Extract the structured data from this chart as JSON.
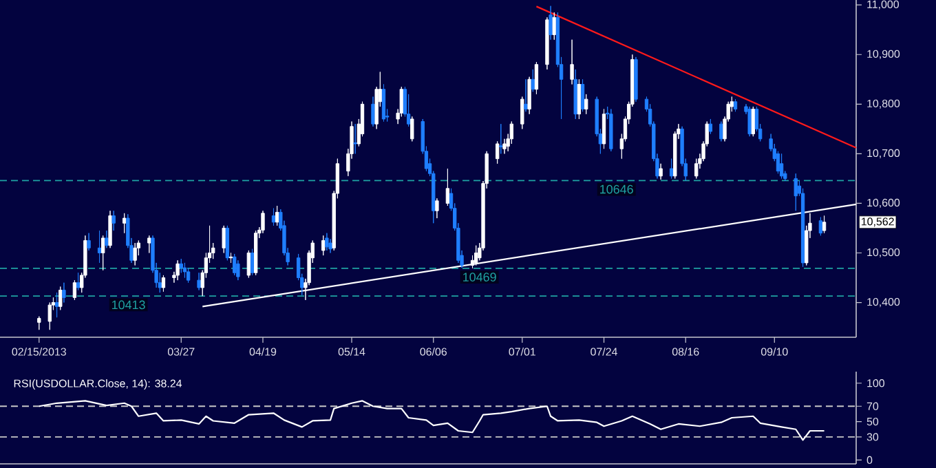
{
  "chart_data": [
    {
      "type": "candlestick",
      "x": [
        "2013-02-15",
        "2013-02-18",
        "2013-02-19",
        "2013-02-20",
        "2013-02-21",
        "2013-02-22",
        "2013-02-25",
        "2013-02-26",
        "2013-02-27",
        "2013-02-28",
        "2013-03-01",
        "2013-03-04",
        "2013-03-05",
        "2013-03-06",
        "2013-03-07",
        "2013-03-08",
        "2013-03-11",
        "2013-03-12",
        "2013-03-13",
        "2013-03-14",
        "2013-03-15",
        "2013-03-18",
        "2013-03-19",
        "2013-03-20",
        "2013-03-21",
        "2013-03-22",
        "2013-03-25",
        "2013-03-26",
        "2013-03-27",
        "2013-03-28",
        "2013-03-29",
        "2013-04-01",
        "2013-04-02",
        "2013-04-03",
        "2013-04-04",
        "2013-04-05",
        "2013-04-08",
        "2013-04-09",
        "2013-04-10",
        "2013-04-11",
        "2013-04-12",
        "2013-04-15",
        "2013-04-16",
        "2013-04-17",
        "2013-04-18",
        "2013-04-19",
        "2013-04-22",
        "2013-04-23",
        "2013-04-24",
        "2013-04-25",
        "2013-04-26",
        "2013-04-29",
        "2013-04-30",
        "2013-05-01",
        "2013-05-02",
        "2013-05-03",
        "2013-05-06",
        "2013-05-07",
        "2013-05-08",
        "2013-05-09",
        "2013-05-10",
        "2013-05-13",
        "2013-05-14",
        "2013-05-15",
        "2013-05-16",
        "2013-05-17",
        "2013-05-20",
        "2013-05-21",
        "2013-05-22",
        "2013-05-23",
        "2013-05-24",
        "2013-05-27",
        "2013-05-28",
        "2013-05-29",
        "2013-05-30",
        "2013-05-31",
        "2013-06-03",
        "2013-06-04",
        "2013-06-05",
        "2013-06-06",
        "2013-06-07",
        "2013-06-10",
        "2013-06-11",
        "2013-06-12",
        "2013-06-13",
        "2013-06-14",
        "2013-06-17",
        "2013-06-18",
        "2013-06-19",
        "2013-06-20",
        "2013-06-21",
        "2013-06-24",
        "2013-06-25",
        "2013-06-26",
        "2013-06-27",
        "2013-06-28",
        "2013-07-01",
        "2013-07-02",
        "2013-07-03",
        "2013-07-04",
        "2013-07-05",
        "2013-07-08",
        "2013-07-09",
        "2013-07-10",
        "2013-07-11",
        "2013-07-12",
        "2013-07-15",
        "2013-07-16",
        "2013-07-17",
        "2013-07-18",
        "2013-07-19",
        "2013-07-22",
        "2013-07-23",
        "2013-07-24",
        "2013-07-25",
        "2013-07-26",
        "2013-07-29",
        "2013-07-30",
        "2013-07-31",
        "2013-08-01",
        "2013-08-02",
        "2013-08-05",
        "2013-08-06",
        "2013-08-07",
        "2013-08-08",
        "2013-08-09",
        "2013-08-12",
        "2013-08-13",
        "2013-08-14",
        "2013-08-15",
        "2013-08-16",
        "2013-08-19",
        "2013-08-20",
        "2013-08-21",
        "2013-08-22",
        "2013-08-23",
        "2013-08-26",
        "2013-08-27",
        "2013-08-28",
        "2013-08-29",
        "2013-08-30",
        "2013-09-02",
        "2013-09-03",
        "2013-09-04",
        "2013-09-05",
        "2013-09-06",
        "2013-09-09",
        "2013-09-10",
        "2013-09-11",
        "2013-09-12",
        "2013-09-13",
        "2013-09-16",
        "2013-09-17",
        "2013-09-18",
        "2013-09-19",
        "2013-09-20",
        "2013-09-23",
        "2013-09-24"
      ],
      "ohlc": [
        [
          10360,
          10372,
          10345,
          10368
        ],
        [
          10362,
          10400,
          10345,
          10395
        ],
        [
          10395,
          10410,
          10385,
          10400
        ],
        [
          10400,
          10420,
          10370,
          10392
        ],
        [
          10392,
          10432,
          10385,
          10425
        ],
        [
          10425,
          10440,
          10400,
          10410
        ],
        [
          10410,
          10445,
          10405,
          10440
        ],
        [
          10440,
          10460,
          10425,
          10430
        ],
        [
          10430,
          10460,
          10420,
          10455
        ],
        [
          10455,
          10535,
          10450,
          10525
        ],
        [
          10525,
          10540,
          10505,
          10510
        ],
        [
          10510,
          10545,
          10480,
          10500
        ],
        [
          10500,
          10535,
          10465,
          10530
        ],
        [
          10530,
          10545,
          10510,
          10515
        ],
        [
          10515,
          10585,
          10510,
          10575
        ],
        [
          10575,
          10585,
          10545,
          10560
        ],
        [
          10560,
          10580,
          10540,
          10570
        ],
        [
          10570,
          10578,
          10510,
          10515
        ],
        [
          10515,
          10530,
          10480,
          10485
        ],
        [
          10485,
          10520,
          10475,
          10510
        ],
        [
          10510,
          10525,
          10495,
          10520
        ],
        [
          10520,
          10535,
          10500,
          10530
        ],
        [
          10530,
          10535,
          10460,
          10465
        ],
        [
          10465,
          10480,
          10430,
          10440
        ],
        [
          10440,
          10460,
          10420,
          10430
        ],
        [
          10430,
          10455,
          10422,
          10450
        ],
        [
          10450,
          10462,
          10440,
          10455
        ],
        [
          10455,
          10485,
          10445,
          10478
        ],
        [
          10478,
          10488,
          10460,
          10470
        ],
        [
          10470,
          10480,
          10450,
          10462
        ],
        [
          10462,
          10470,
          10440,
          10445
        ],
        [
          10445,
          10460,
          10425,
          10430
        ],
        [
          10430,
          10465,
          10413,
          10460
        ],
        [
          10460,
          10500,
          10450,
          10490
        ],
        [
          10490,
          10555,
          10480,
          10500
        ],
        [
          10500,
          10520,
          10488,
          10510
        ],
        [
          10510,
          10555,
          10500,
          10550
        ],
        [
          10550,
          10555,
          10485,
          10490
        ],
        [
          10490,
          10500,
          10480,
          10492
        ],
        [
          10492,
          10498,
          10455,
          10460
        ],
        [
          10478,
          10485,
          10445,
          10452
        ],
        [
          10455,
          10505,
          10450,
          10500
        ],
        [
          10500,
          10508,
          10455,
          10460
        ],
        [
          10460,
          10545,
          10455,
          10540
        ],
        [
          10540,
          10552,
          10530,
          10546
        ],
        [
          10546,
          10585,
          10540,
          10580
        ],
        [
          10575,
          10590,
          10555,
          10562
        ],
        [
          10562,
          10595,
          10555,
          10582
        ],
        [
          10582,
          10588,
          10545,
          10550
        ],
        [
          10555,
          10565,
          10495,
          10500
        ],
        [
          10500,
          10510,
          10475,
          10482
        ],
        [
          10490,
          10498,
          10445,
          10450
        ],
        [
          10450,
          10458,
          10415,
          10430
        ],
        [
          10430,
          10448,
          10405,
          10440
        ],
        [
          10440,
          10505,
          10435,
          10500
        ],
        [
          10490,
          10525,
          10480,
          10520
        ],
        [
          10505,
          10535,
          10495,
          10525
        ],
        [
          10530,
          10540,
          10505,
          10512
        ],
        [
          10520,
          10528,
          10500,
          10508
        ],
        [
          10510,
          10625,
          10505,
          10620
        ],
        [
          10620,
          10690,
          10610,
          10680
        ],
        [
          10665,
          10710,
          10655,
          10700
        ],
        [
          10700,
          10765,
          10690,
          10755
        ],
        [
          10722,
          10760,
          10700,
          10720
        ],
        [
          10720,
          10770,
          10715,
          10760
        ],
        [
          10740,
          10805,
          10735,
          10800
        ],
        [
          10800,
          10815,
          10755,
          10760
        ],
        [
          10760,
          10835,
          10750,
          10830
        ],
        [
          10805,
          10865,
          10795,
          10830
        ],
        [
          10830,
          10840,
          10765,
          10770
        ],
        [
          10776,
          10790,
          10765,
          10774
        ],
        [
          10770,
          10790,
          10760,
          10782
        ],
        [
          10782,
          10835,
          10775,
          10830
        ],
        [
          10830,
          10835,
          10775,
          10780
        ],
        [
          10780,
          10820,
          10755,
          10760
        ],
        [
          10730,
          10775,
          10725,
          10770
        ],
        [
          10765,
          10770,
          10700,
          10705
        ],
        [
          10705,
          10715,
          10665,
          10670
        ],
        [
          10680,
          10690,
          10655,
          10660
        ],
        [
          10660,
          10665,
          10560,
          10585
        ],
        [
          10585,
          10610,
          10570,
          10605
        ],
        [
          10600,
          10670,
          10595,
          10630
        ],
        [
          10620,
          10630,
          10585,
          10590
        ],
        [
          10590,
          10600,
          10545,
          10550
        ],
        [
          10550,
          10560,
          10480,
          10485
        ],
        [
          10495,
          10505,
          10470,
          10475
        ],
        [
          10475,
          10495,
          10469,
          10485
        ],
        [
          10480,
          10515,
          10475,
          10500
        ],
        [
          10490,
          10520,
          10485,
          10510
        ],
        [
          10510,
          10645,
          10505,
          10640
        ],
        [
          10640,
          10705,
          10630,
          10700
        ],
        [
          10690,
          10725,
          10680,
          10720
        ],
        [
          10716,
          10760,
          10700,
          10714
        ],
        [
          10710,
          10730,
          10700,
          10720
        ],
        [
          10715,
          10740,
          10705,
          10730
        ],
        [
          10730,
          10765,
          10720,
          10760
        ],
        [
          10760,
          10815,
          10750,
          10810
        ],
        [
          10800,
          10850,
          10785,
          10790
        ],
        [
          10790,
          10855,
          10780,
          10850
        ],
        [
          10850,
          10870,
          10825,
          10830
        ],
        [
          10830,
          10885,
          10820,
          10880
        ],
        [
          10880,
          10975,
          10870,
          10970
        ],
        [
          10980,
          10998,
          10930,
          10940
        ],
        [
          10940,
          10985,
          10930,
          10975
        ],
        [
          10975,
          10985,
          10875,
          10880
        ],
        [
          10880,
          10895,
          10770,
          10850
        ],
        [
          10850,
          10930,
          10840,
          10880
        ],
        [
          10850,
          10870,
          10770,
          10780
        ],
        [
          10780,
          10850,
          10770,
          10840
        ],
        [
          10840,
          10850,
          10785,
          10790
        ],
        [
          10790,
          10820,
          10780,
          10810
        ],
        [
          10810,
          10815,
          10735,
          10740
        ],
        [
          10740,
          10750,
          10700,
          10720
        ],
        [
          10720,
          10790,
          10710,
          10780
        ],
        [
          10782,
          10795,
          10770,
          10780
        ],
        [
          10780,
          10790,
          10705,
          10710
        ],
        [
          10710,
          10740,
          10690,
          10730
        ],
        [
          10730,
          10775,
          10725,
          10770
        ],
        [
          10770,
          10805,
          10760,
          10800
        ],
        [
          10800,
          10900,
          10795,
          10890
        ],
        [
          10890,
          10895,
          10805,
          10810
        ],
        [
          10810,
          10815,
          10785,
          10790
        ],
        [
          10790,
          10800,
          10755,
          10760
        ],
        [
          10760,
          10765,
          10685,
          10690
        ],
        [
          10690,
          10700,
          10650,
          10655
        ],
        [
          10655,
          10680,
          10648,
          10670
        ],
        [
          10670,
          10690,
          10650,
          10655
        ],
        [
          10655,
          10745,
          10650,
          10740
        ],
        [
          10740,
          10760,
          10730,
          10750
        ],
        [
          10750,
          10755,
          10675,
          10680
        ],
        [
          10680,
          10690,
          10646,
          10655
        ],
        [
          10655,
          10690,
          10650,
          10680
        ],
        [
          10680,
          10700,
          10670,
          10690
        ],
        [
          10690,
          10725,
          10685,
          10720
        ],
        [
          10720,
          10765,
          10715,
          10760
        ],
        [
          10760,
          10770,
          10740,
          10745
        ],
        [
          10760,
          10765,
          10725,
          10730
        ],
        [
          10730,
          10775,
          10725,
          10770
        ],
        [
          10770,
          10805,
          10765,
          10800
        ],
        [
          10795,
          10815,
          10785,
          10805
        ],
        [
          10805,
          10810,
          10785,
          10790
        ],
        [
          10795,
          10800,
          10780,
          10785
        ],
        [
          10790,
          10795,
          10735,
          10740
        ],
        [
          10740,
          10795,
          10735,
          10790
        ],
        [
          10790,
          10795,
          10745,
          10750
        ],
        [
          10750,
          10760,
          10725,
          10730
        ],
        [
          10730,
          10740,
          10705,
          10710
        ],
        [
          10710,
          10720,
          10685,
          10690
        ],
        [
          10700,
          10705,
          10660,
          10665
        ],
        [
          10680,
          10700,
          10650,
          10655
        ],
        [
          10660,
          10665,
          10645,
          10650
        ],
        [
          10650,
          10660,
          10585,
          10615
        ],
        [
          10635,
          10645,
          10615,
          10620
        ],
        [
          10620,
          10630,
          10472,
          10480
        ],
        [
          10480,
          10555,
          10475,
          10545
        ],
        [
          10545,
          10580,
          10530,
          10560
        ],
        [
          10565,
          10572,
          10535,
          10540
        ],
        [
          10545,
          10575,
          10540,
          10562
        ]
      ],
      "colors": [
        "#ffffff",
        "#ffffff",
        "#ffffff",
        "#1f7fff",
        "#ffffff",
        "#1f7fff",
        "#ffffff",
        "#1f7fff",
        "#ffffff",
        "#ffffff",
        "#1f7fff",
        "#1f7fff",
        "#ffffff",
        "#1f7fff",
        "#ffffff",
        "#1f7fff",
        "#ffffff",
        "#1f7fff",
        "#1f7fff",
        "#ffffff",
        "#ffffff",
        "#ffffff",
        "#1f7fff",
        "#1f7fff",
        "#1f7fff",
        "#ffffff",
        "#ffffff",
        "#ffffff",
        "#1f7fff",
        "#1f7fff",
        "#1f7fff",
        "#1f7fff",
        "#ffffff",
        "#ffffff",
        "#ffffff",
        "#ffffff",
        "#ffffff",
        "#1f7fff",
        "#ffffff",
        "#1f7fff",
        "#1f7fff",
        "#ffffff",
        "#1f7fff",
        "#ffffff",
        "#ffffff",
        "#ffffff",
        "#1f7fff",
        "#ffffff",
        "#1f7fff",
        "#1f7fff",
        "#1f7fff",
        "#1f7fff",
        "#1f7fff",
        "#ffffff",
        "#ffffff",
        "#ffffff",
        "#ffffff",
        "#1f7fff",
        "#1f7fff",
        "#ffffff",
        "#ffffff",
        "#ffffff",
        "#ffffff",
        "#1f7fff",
        "#ffffff",
        "#ffffff",
        "#1f7fff",
        "#ffffff",
        "#ffffff",
        "#1f7fff",
        "#1f7fff",
        "#ffffff",
        "#ffffff",
        "#1f7fff",
        "#1f7fff",
        "#ffffff",
        "#1f7fff",
        "#1f7fff",
        "#1f7fff",
        "#1f7fff",
        "#ffffff",
        "#ffffff",
        "#1f7fff",
        "#1f7fff",
        "#1f7fff",
        "#1f7fff",
        "#ffffff",
        "#ffffff",
        "#ffffff",
        "#ffffff",
        "#ffffff",
        "#ffffff",
        "#1f7fff",
        "#ffffff",
        "#ffffff",
        "#ffffff",
        "#ffffff",
        "#1f7fff",
        "#ffffff",
        "#1f7fff",
        "#ffffff",
        "#ffffff",
        "#1f7fff",
        "#ffffff",
        "#1f7fff",
        "#1f7fff",
        "#ffffff",
        "#1f7fff",
        "#ffffff",
        "#1f7fff",
        "#ffffff",
        "#1f7fff",
        "#1f7fff",
        "#ffffff",
        "#1f7fff",
        "#1f7fff",
        "#ffffff",
        "#ffffff",
        "#ffffff",
        "#ffffff",
        "#1f7fff",
        "#1f7fff",
        "#1f7fff",
        "#1f7fff",
        "#1f7fff",
        "#ffffff",
        "#1f7fff",
        "#ffffff",
        "#ffffff",
        "#1f7fff",
        "#1f7fff",
        "#ffffff",
        "#ffffff",
        "#ffffff",
        "#ffffff",
        "#1f7fff",
        "#1f7fff",
        "#ffffff",
        "#ffffff",
        "#ffffff",
        "#1f7fff",
        "#1f7fff",
        "#1f7fff",
        "#ffffff",
        "#1f7fff",
        "#1f7fff",
        "#1f7fff",
        "#1f7fff",
        "#1f7fff",
        "#1f7fff",
        "#1f7fff",
        "#1f7fff",
        "#1f7fff",
        "#1f7fff",
        "#ffffff",
        "#ffffff",
        "#1f7fff",
        "#ffffff"
      ],
      "series": [
        {
          "type": "line",
          "x": [
            "2013-04-02",
            "2013-10-03"
          ],
          "values": [
            10392,
            10598
          ],
          "color": "#ffffff"
        },
        {
          "type": "line",
          "x": [
            "2013-07-05",
            "2013-10-03"
          ],
          "values": [
            10997,
            10712
          ],
          "color": "#ff1a1a"
        }
      ],
      "xlim": [
        "2013-02-04",
        "2013-10-03"
      ],
      "xticks": [
        {
          "value": "2013-02-15",
          "label": "02/15/2013"
        },
        {
          "value": "2013-03-27",
          "label": "03/27"
        },
        {
          "value": "2013-04-19",
          "label": "04/19"
        },
        {
          "value": "2013-05-14",
          "label": "05/14"
        },
        {
          "value": "2013-06-06",
          "label": "06/06"
        },
        {
          "value": "2013-07-01",
          "label": "07/01"
        },
        {
          "value": "2013-07-24",
          "label": "07/24"
        },
        {
          "value": "2013-08-16",
          "label": "08/16"
        },
        {
          "value": "2013-09-10",
          "label": "09/10"
        }
      ],
      "ylim": [
        10330,
        11010
      ],
      "yticks": [
        {
          "value": 10400,
          "label": "10,400"
        },
        {
          "value": 10500,
          "label": "10,500"
        },
        {
          "value": 10600,
          "label": "10,600"
        },
        {
          "value": 10700,
          "label": "10,700"
        },
        {
          "value": 10800,
          "label": "10,800"
        },
        {
          "value": 10900,
          "label": "10,900"
        },
        {
          "value": 11000,
          "label": "11,000"
        }
      ],
      "ref_lines": [
        {
          "axis": "y",
          "value": 10646,
          "label": "10646",
          "color": "#1fa3a3",
          "line_style": "dashed"
        },
        {
          "axis": "y",
          "value": 10469,
          "label": "10469",
          "color": "#1fa3a3",
          "line_style": "dashed"
        },
        {
          "axis": "y",
          "value": 10413,
          "label": "10413",
          "color": "#1fa3a3",
          "line_style": "dashed"
        }
      ],
      "annotations": [
        "10,562"
      ]
    },
    {
      "type": "line",
      "title": "RSI(USDOLLAR.Close, 14): 38.24",
      "series": [
        {
          "x": [
            "2013-02-15",
            "2013-02-20",
            "2013-02-28",
            "2013-03-06",
            "2013-03-11",
            "2013-03-13",
            "2013-03-15",
            "2013-03-20",
            "2013-03-22",
            "2013-03-27",
            "2013-04-01",
            "2013-04-03",
            "2013-04-05",
            "2013-04-11",
            "2013-04-15",
            "2013-04-22",
            "2013-04-25",
            "2013-04-30",
            "2013-05-03",
            "2013-05-08",
            "2013-05-09",
            "2013-05-14",
            "2013-05-17",
            "2013-05-20",
            "2013-05-24",
            "2013-05-28",
            "2013-05-30",
            "2013-06-04",
            "2013-06-06",
            "2013-06-10",
            "2013-06-13",
            "2013-06-17",
            "2013-06-19",
            "2013-06-20",
            "2013-06-25",
            "2013-06-28",
            "2013-07-03",
            "2013-07-08",
            "2013-07-09",
            "2013-07-11",
            "2013-07-17",
            "2013-07-22",
            "2013-07-24",
            "2013-07-29",
            "2013-08-01",
            "2013-08-06",
            "2013-08-09",
            "2013-08-14",
            "2013-08-20",
            "2013-08-26",
            "2013-08-29",
            "2013-09-04",
            "2013-09-06",
            "2013-09-12",
            "2013-09-16",
            "2013-09-18",
            "2013-09-20",
            "2013-09-24"
          ],
          "values": [
            70,
            74,
            77,
            71,
            74,
            70,
            57,
            61,
            51,
            52,
            47,
            57,
            51,
            48,
            59,
            61,
            52,
            43,
            51,
            52,
            67,
            74,
            77,
            70,
            67,
            67,
            55,
            52,
            45,
            48,
            38,
            36,
            51,
            59,
            61,
            63,
            67,
            70,
            57,
            51,
            52,
            49,
            44,
            51,
            57,
            47,
            40,
            47,
            44,
            49,
            55,
            57,
            48,
            43,
            40,
            26,
            38,
            38
          ],
          "color": "#ffffff"
        }
      ],
      "xlim": [
        "2013-02-04",
        "2013-10-03"
      ],
      "ylim": [
        -5,
        115
      ],
      "yticks": [
        0,
        30,
        50,
        70,
        100
      ],
      "tick_labels": "y",
      "ref_lines": [
        {
          "axis": "y",
          "value": 70,
          "color": "#c8c8c8",
          "line_style": "dashed"
        },
        {
          "axis": "y",
          "value": 30,
          "color": "#c8c8c8",
          "line_style": "dashed"
        }
      ]
    }
  ]
}
